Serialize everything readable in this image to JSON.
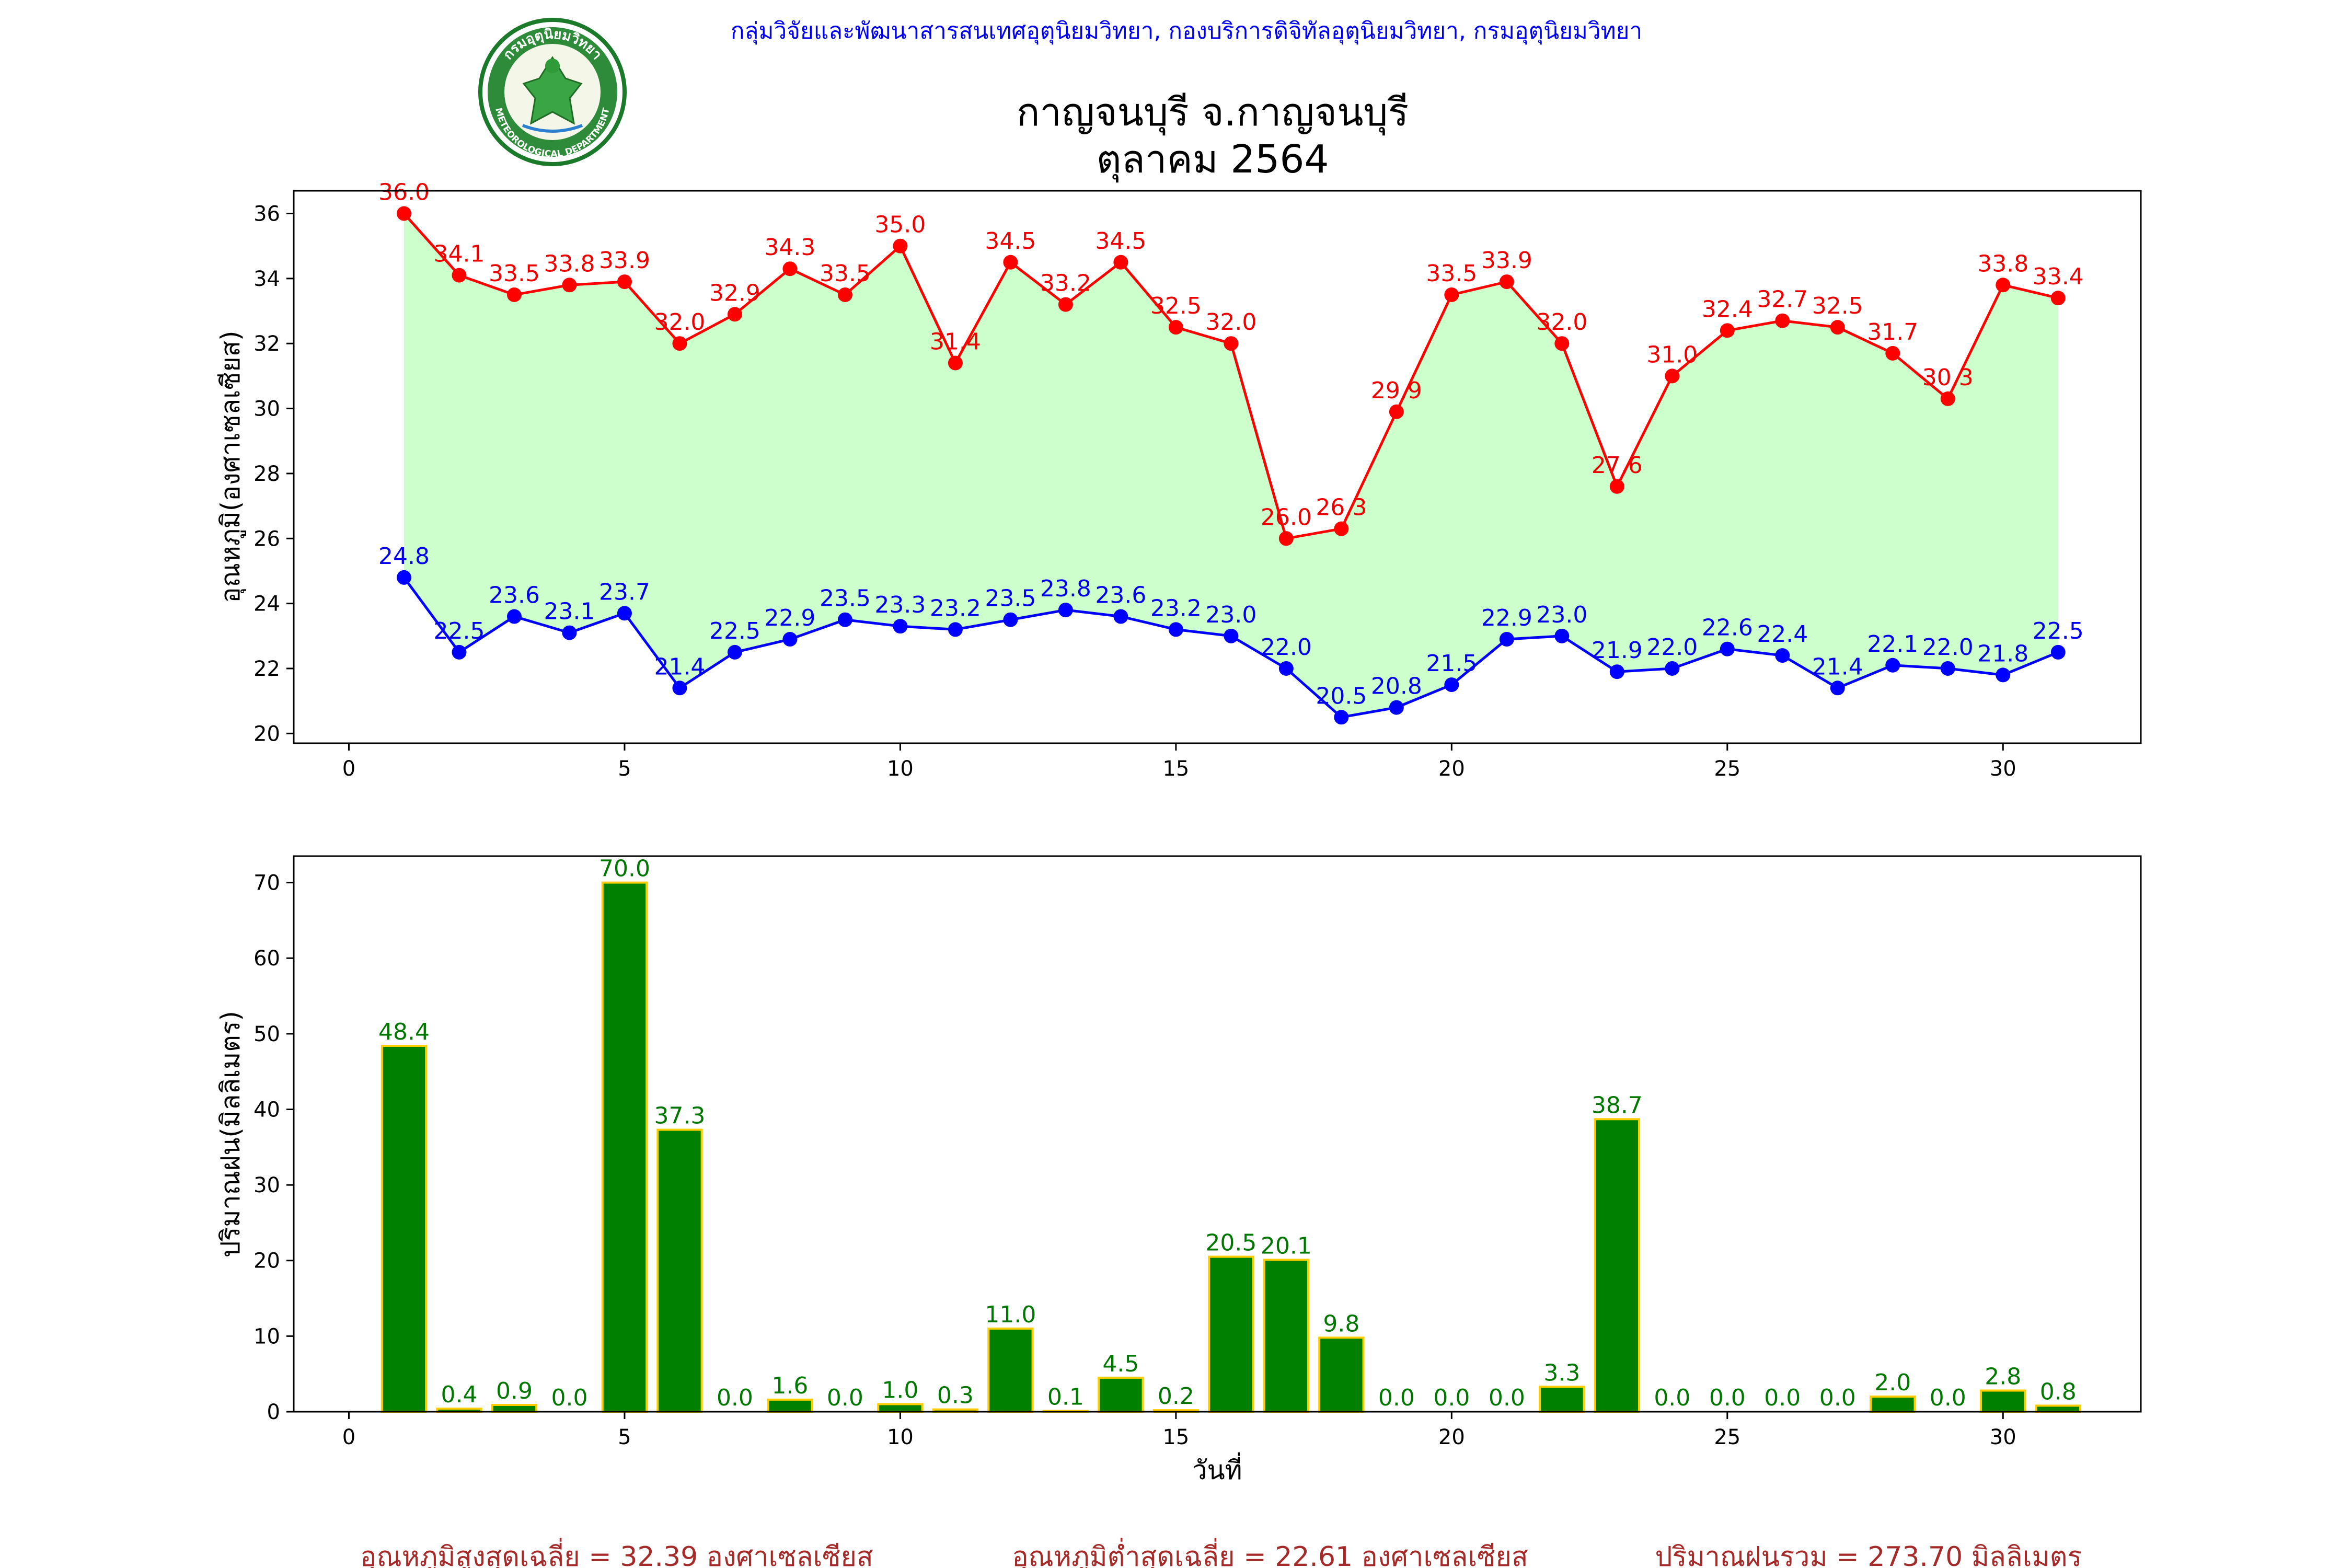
{
  "header": {
    "agency": "กลุ่มวิจัยและพัฒนาสารสนเทศอุตุนิยมวิทยา, กองบริการดิจิทัลอุตุนิยมวิทยา, กรมอุตุนิยมวิทยา",
    "title_line1": "กาญจนบุรี จ.กาญจนบุรี",
    "title_line2": "ตุลาคม 2564",
    "logo": {
      "icon": "department-seal-icon",
      "top_text": "กรมอุตุนิยมวิทยา",
      "bottom_text": "METEOROLOGICAL DEPARTMENT"
    }
  },
  "chart_data": [
    {
      "type": "line",
      "ylabel": "อุณหภูมิ(องศาเซลเซียส)",
      "xlabel": "",
      "xlim": [
        -1,
        32.5
      ],
      "ylim": [
        19.7,
        36.7
      ],
      "xticks": [
        0,
        5,
        10,
        15,
        20,
        25,
        30
      ],
      "yticks": [
        20,
        22,
        24,
        26,
        28,
        30,
        32,
        34,
        36
      ],
      "x": [
        1,
        2,
        3,
        4,
        5,
        6,
        7,
        8,
        9,
        10,
        11,
        12,
        13,
        14,
        15,
        16,
        17,
        18,
        19,
        20,
        21,
        22,
        23,
        24,
        25,
        26,
        27,
        28,
        29,
        30,
        31
      ],
      "fill_between": "max-min",
      "series": [
        {
          "key": "max",
          "color": "#ff0000",
          "values": [
            36.0,
            34.1,
            33.5,
            33.8,
            33.9,
            32.0,
            32.9,
            34.3,
            33.5,
            35.0,
            31.4,
            34.5,
            33.2,
            34.5,
            32.5,
            32.0,
            26.0,
            26.3,
            29.9,
            33.5,
            33.9,
            32.0,
            27.6,
            31.0,
            32.4,
            32.7,
            32.5,
            31.7,
            30.3,
            33.8,
            33.4
          ]
        },
        {
          "key": "min",
          "color": "#0000ff",
          "values": [
            24.8,
            22.5,
            23.6,
            23.1,
            23.7,
            21.4,
            22.5,
            22.9,
            23.5,
            23.3,
            23.2,
            23.5,
            23.8,
            23.6,
            23.2,
            23.0,
            22.0,
            20.5,
            20.8,
            21.5,
            22.9,
            23.0,
            21.9,
            22.0,
            22.6,
            22.4,
            21.4,
            22.1,
            22.0,
            21.8,
            22.5
          ]
        }
      ],
      "fill_color": "#ccffcc"
    },
    {
      "type": "bar",
      "ylabel": "ปริมาณฝน(มิลลิเมตร)",
      "xlabel": "วันที่",
      "xlim": [
        -1,
        32.5
      ],
      "ylim": [
        0,
        73.5
      ],
      "xticks": [
        0,
        5,
        10,
        15,
        20,
        25,
        30
      ],
      "yticks": [
        0,
        10,
        20,
        30,
        40,
        50,
        60,
        70
      ],
      "x": [
        1,
        2,
        3,
        4,
        5,
        6,
        7,
        8,
        9,
        10,
        11,
        12,
        13,
        14,
        15,
        16,
        17,
        18,
        19,
        20,
        21,
        22,
        23,
        24,
        25,
        26,
        27,
        28,
        29,
        30,
        31
      ],
      "values": [
        48.4,
        0.4,
        0.9,
        0.0,
        70.0,
        37.3,
        0.0,
        1.6,
        0.0,
        1.0,
        0.3,
        11.0,
        0.1,
        4.5,
        0.2,
        20.5,
        20.1,
        9.8,
        0.0,
        0.0,
        0.0,
        3.3,
        38.7,
        0.0,
        0.0,
        0.0,
        0.0,
        2.0,
        0.0,
        2.8,
        0.8
      ],
      "bar_color": "#008000",
      "edge_color": "#ffcc00"
    }
  ],
  "summary": {
    "avg_max": "อุณหภูมิสูงสุดเฉลี่ย = 32.39 องศาเซลเซียส",
    "avg_min": "อุณหภูมิต่ำสุดเฉลี่ย = 22.61 องศาเซลเซียส",
    "total_rain": "ปริมาณฝนรวม = 273.70 มิลลิเมตร"
  }
}
